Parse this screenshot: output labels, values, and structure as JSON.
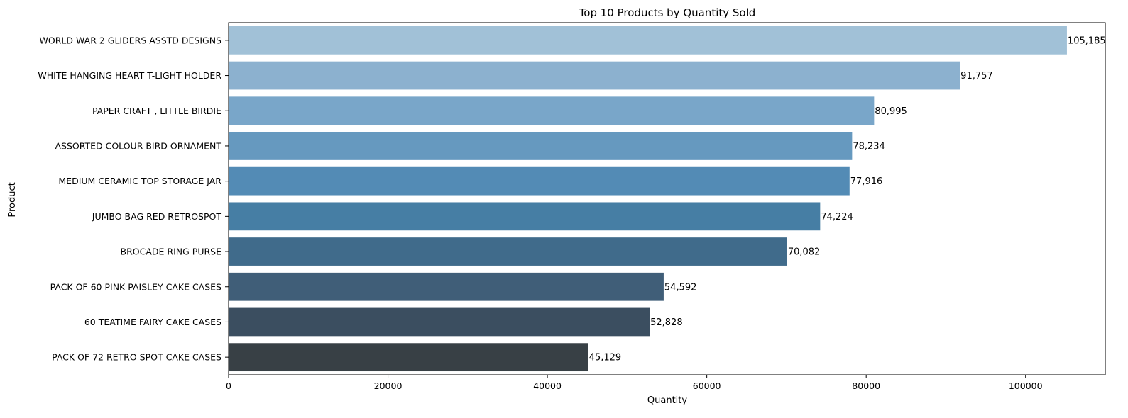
{
  "chart_data": {
    "type": "bar",
    "orientation": "horizontal",
    "title": "Top 10 Products by Quantity Sold",
    "xlabel": "Quantity",
    "ylabel": "Product",
    "xlim": [
      0,
      110000
    ],
    "xticks": [
      0,
      20000,
      40000,
      60000,
      80000,
      100000
    ],
    "xtick_labels": [
      "0",
      "20000",
      "40000",
      "60000",
      "80000",
      "100000"
    ],
    "grid": false,
    "categories": [
      "WORLD WAR 2 GLIDERS ASSTD DESIGNS",
      "WHITE HANGING HEART T-LIGHT HOLDER",
      "PAPER CRAFT , LITTLE BIRDIE",
      "ASSORTED COLOUR BIRD ORNAMENT",
      "MEDIUM CERAMIC TOP STORAGE JAR",
      "JUMBO BAG RED RETROSPOT",
      "BROCADE RING PURSE ",
      "PACK OF 60 PINK PAISLEY CAKE CASES",
      "60 TEATIME FAIRY CAKE CASES",
      "PACK OF 72 RETRO SPOT CAKE CASES"
    ],
    "values": [
      105185,
      91757,
      80995,
      78234,
      77916,
      74224,
      70082,
      54592,
      52828,
      45129
    ],
    "value_labels": [
      "105,185",
      "91,757",
      "80,995",
      "78,234",
      "77,916",
      "74,224",
      "70,082",
      "54,592",
      "52,828",
      "45,129"
    ],
    "colors": [
      "#a1c1d7",
      "#8cb1cf",
      "#79a6c9",
      "#6699bf",
      "#538bb5",
      "#467ea4",
      "#406b8b",
      "#405e78",
      "#3b4e60",
      "#384045"
    ]
  }
}
